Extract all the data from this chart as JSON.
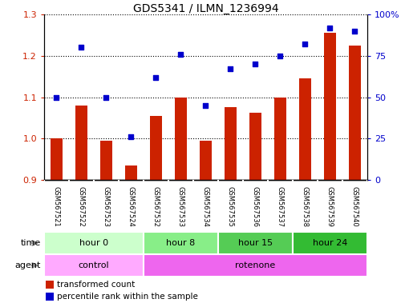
{
  "title": "GDS5341 / ILMN_1236994",
  "samples": [
    "GSM567521",
    "GSM567522",
    "GSM567523",
    "GSM567524",
    "GSM567532",
    "GSM567533",
    "GSM567534",
    "GSM567535",
    "GSM567536",
    "GSM567537",
    "GSM567538",
    "GSM567539",
    "GSM567540"
  ],
  "transformed_count": [
    1.0,
    1.08,
    0.995,
    0.934,
    1.055,
    1.1,
    0.995,
    1.075,
    1.063,
    1.1,
    1.145,
    1.255,
    1.225
  ],
  "percentile_rank": [
    50,
    80,
    50,
    26,
    62,
    76,
    45,
    67,
    70,
    75,
    82,
    92,
    90
  ],
  "bar_color": "#cc2200",
  "dot_color": "#0000cc",
  "ylim_left": [
    0.9,
    1.3
  ],
  "ylim_right": [
    0,
    100
  ],
  "yticks_left": [
    0.9,
    1.0,
    1.1,
    1.2,
    1.3
  ],
  "yticks_right": [
    0,
    25,
    50,
    75,
    100
  ],
  "yticklabels_right": [
    "0",
    "25",
    "50",
    "75",
    "100%"
  ],
  "time_groups": [
    {
      "label": "hour 0",
      "start": 0,
      "end": 4,
      "color": "#ccffcc"
    },
    {
      "label": "hour 8",
      "start": 4,
      "end": 7,
      "color": "#88ee88"
    },
    {
      "label": "hour 15",
      "start": 7,
      "end": 10,
      "color": "#55cc55"
    },
    {
      "label": "hour 24",
      "start": 10,
      "end": 13,
      "color": "#33bb33"
    }
  ],
  "agent_groups": [
    {
      "label": "control",
      "start": 0,
      "end": 4,
      "color": "#ffaaff"
    },
    {
      "label": "rotenone",
      "start": 4,
      "end": 13,
      "color": "#ee66ee"
    }
  ],
  "time_label": "time",
  "agent_label": "agent",
  "legend_bar_label": "transformed count",
  "legend_dot_label": "percentile rank within the sample",
  "bar_width": 0.5,
  "background_color": "#ffffff",
  "tick_label_area_color": "#cccccc"
}
